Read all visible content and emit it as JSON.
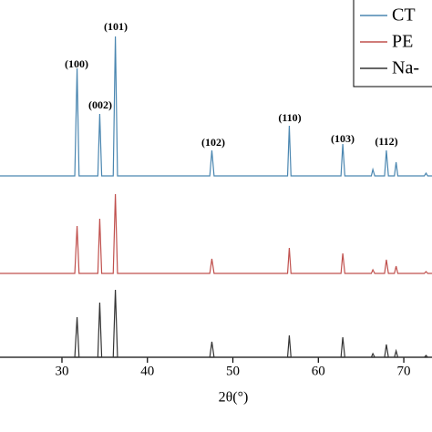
{
  "chart_data": {
    "type": "line",
    "x_label": "2θ(°)",
    "x": [
      22.75,
      31.5,
      31.77,
      32.0,
      34.2,
      34.42,
      34.65,
      36.0,
      36.25,
      36.5,
      47.3,
      47.54,
      47.8,
      56.4,
      56.6,
      56.8,
      62.65,
      62.86,
      63.1,
      66.2,
      66.38,
      66.6,
      67.75,
      67.96,
      68.2,
      68.9,
      69.1,
      69.3,
      72.4,
      72.6,
      72.8,
      73.3
    ],
    "series": [
      {
        "name": "CT",
        "color": "#4a86b0",
        "values": [
          199,
          199,
          317,
          199,
          199,
          267,
          199,
          199,
          352,
          199,
          199,
          227,
          199,
          199,
          254,
          199,
          199,
          234,
          199,
          199,
          206,
          199,
          199,
          227,
          199,
          199,
          214,
          199,
          199,
          202,
          199,
          199
        ]
      },
      {
        "name": "PE",
        "color": "#c0504d",
        "values": [
          92,
          92,
          144,
          92,
          92,
          152,
          92,
          92,
          179,
          92,
          92,
          108,
          92,
          92,
          120,
          92,
          92,
          114,
          92,
          92,
          96,
          92,
          92,
          107,
          92,
          92,
          100,
          92,
          92,
          94,
          92,
          92
        ]
      },
      {
        "name": "Na-",
        "color": "#333333",
        "values": [
          0,
          0,
          44,
          0,
          0,
          60,
          0,
          0,
          74,
          0,
          0,
          17,
          0,
          0,
          24,
          0,
          0,
          22,
          0,
          0,
          4,
          0,
          0,
          14,
          0,
          0,
          7,
          0,
          0,
          2,
          0,
          0
        ]
      }
    ],
    "annotations": [
      "(100)",
      "(002)",
      "(101)",
      "(102)",
      "(110)",
      "(103)",
      "(112)"
    ],
    "xlim": [
      22.75,
      73.3
    ],
    "xticks": [
      30,
      40,
      50,
      60,
      70
    ],
    "ylim": [
      0,
      400
    ],
    "legend": "top-right"
  }
}
